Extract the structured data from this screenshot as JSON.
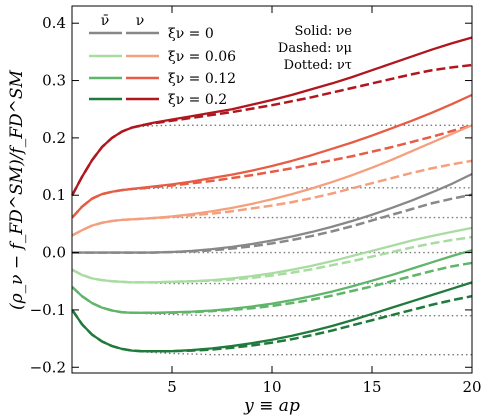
{
  "chart_data": {
    "type": "line",
    "title": "",
    "xlabel": "y ≡ ap",
    "ylabel": "(ρ_ν − f_FD^SM)/f_FD^SM",
    "xlim": [
      0,
      20
    ],
    "ylim": [
      -0.21,
      0.43
    ],
    "x_ticks": [
      5,
      10,
      15,
      20
    ],
    "y_ticks": [
      -0.2,
      -0.1,
      0.0,
      0.1,
      0.2,
      0.3,
      0.4
    ],
    "x_tick_labels": [
      "5",
      "10",
      "15",
      "20"
    ],
    "y_tick_labels": [
      "−0.2",
      "−0.1",
      "0.0",
      "0.1",
      "0.2",
      "0.3",
      "0.4"
    ],
    "legend_headers": [
      "ν̄",
      "ν"
    ],
    "legend_location": "top-left",
    "legend": [
      {
        "label": "ξν = 0",
        "antinu_color": "#888888",
        "nu_color": "#888888"
      },
      {
        "label": "ξν = 0.06",
        "antinu_color": "#a8dca0",
        "nu_color": "#f4a07e"
      },
      {
        "label": "ξν = 0.12",
        "antinu_color": "#5fb56a",
        "nu_color": "#e65c44"
      },
      {
        "label": "ξν = 0.2",
        "antinu_color": "#1f7a3c",
        "nu_color": "#b0161e"
      }
    ],
    "annotation": {
      "lines": [
        "Solid: νe",
        "Dashed: νμ",
        "Dotted: ντ"
      ],
      "location": "top-center"
    },
    "x": [
      0.01,
      0.5,
      1,
      1.5,
      2,
      2.5,
      3,
      3.5,
      4,
      5,
      6,
      7,
      8,
      9,
      10,
      11,
      12,
      13,
      14,
      15,
      16,
      17,
      18,
      19,
      20
    ],
    "series": [
      {
        "family": "nu",
        "xi": 0.2,
        "flavor": "e",
        "style": "solid",
        "color": "#b0161e",
        "values": [
          0.1,
          0.132,
          0.161,
          0.184,
          0.2,
          0.211,
          0.218,
          0.222,
          0.226,
          0.232,
          0.238,
          0.244,
          0.25,
          0.258,
          0.266,
          0.275,
          0.285,
          0.295,
          0.306,
          0.318,
          0.33,
          0.342,
          0.354,
          0.365,
          0.375
        ]
      },
      {
        "family": "nu",
        "xi": 0.2,
        "flavor": "mu",
        "style": "dashed",
        "color": "#b0161e",
        "values": [
          0.1,
          0.132,
          0.161,
          0.184,
          0.2,
          0.211,
          0.218,
          0.222,
          0.225,
          0.23,
          0.235,
          0.24,
          0.245,
          0.251,
          0.257,
          0.264,
          0.271,
          0.279,
          0.287,
          0.295,
          0.303,
          0.311,
          0.318,
          0.323,
          0.327
        ]
      },
      {
        "family": "nu",
        "xi": 0.2,
        "flavor": "tau",
        "style": "dotted",
        "color": "#777777",
        "values": [
          0.1,
          0.132,
          0.161,
          0.184,
          0.2,
          0.211,
          0.217,
          0.22,
          0.221,
          0.222,
          0.222,
          0.222,
          0.222,
          0.222,
          0.222,
          0.222,
          0.222,
          0.222,
          0.222,
          0.222,
          0.222,
          0.222,
          0.222,
          0.222,
          0.222
        ]
      },
      {
        "family": "nu",
        "xi": 0.12,
        "flavor": "e",
        "style": "solid",
        "color": "#e65c44",
        "values": [
          0.061,
          0.08,
          0.094,
          0.102,
          0.106,
          0.109,
          0.111,
          0.113,
          0.115,
          0.119,
          0.124,
          0.13,
          0.136,
          0.143,
          0.151,
          0.16,
          0.17,
          0.181,
          0.192,
          0.204,
          0.217,
          0.23,
          0.244,
          0.259,
          0.275
        ]
      },
      {
        "family": "nu",
        "xi": 0.12,
        "flavor": "mu",
        "style": "dashed",
        "color": "#e65c44",
        "values": [
          0.061,
          0.08,
          0.094,
          0.102,
          0.106,
          0.109,
          0.111,
          0.112,
          0.114,
          0.117,
          0.121,
          0.125,
          0.13,
          0.135,
          0.141,
          0.147,
          0.154,
          0.161,
          0.168,
          0.176,
          0.184,
          0.193,
          0.202,
          0.212,
          0.222
        ]
      },
      {
        "family": "nu",
        "xi": 0.12,
        "flavor": "tau",
        "style": "dotted",
        "color": "#777777",
        "values": [
          0.061,
          0.08,
          0.094,
          0.102,
          0.106,
          0.108,
          0.11,
          0.111,
          0.112,
          0.113,
          0.113,
          0.113,
          0.113,
          0.113,
          0.113,
          0.113,
          0.113,
          0.113,
          0.113,
          0.113,
          0.113,
          0.113,
          0.113,
          0.113,
          0.113
        ]
      },
      {
        "family": "nu",
        "xi": 0.06,
        "flavor": "e",
        "style": "solid",
        "color": "#f4a07e",
        "values": [
          0.03,
          0.039,
          0.047,
          0.052,
          0.055,
          0.057,
          0.058,
          0.059,
          0.06,
          0.063,
          0.067,
          0.072,
          0.078,
          0.085,
          0.093,
          0.102,
          0.112,
          0.123,
          0.135,
          0.148,
          0.162,
          0.177,
          0.192,
          0.207,
          0.222
        ]
      },
      {
        "family": "nu",
        "xi": 0.06,
        "flavor": "mu",
        "style": "dashed",
        "color": "#f4a07e",
        "values": [
          0.03,
          0.039,
          0.047,
          0.052,
          0.055,
          0.057,
          0.058,
          0.059,
          0.06,
          0.062,
          0.065,
          0.068,
          0.072,
          0.077,
          0.082,
          0.088,
          0.095,
          0.103,
          0.112,
          0.121,
          0.13,
          0.139,
          0.147,
          0.154,
          0.16
        ]
      },
      {
        "family": "nu",
        "xi": 0.06,
        "flavor": "tau",
        "style": "dotted",
        "color": "#777777",
        "values": [
          0.03,
          0.039,
          0.047,
          0.052,
          0.055,
          0.057,
          0.058,
          0.059,
          0.06,
          0.061,
          0.061,
          0.061,
          0.061,
          0.061,
          0.061,
          0.061,
          0.061,
          0.061,
          0.061,
          0.061,
          0.061,
          0.061,
          0.061,
          0.061,
          0.061
        ]
      },
      {
        "family": "both",
        "xi": 0.0,
        "flavor": "e",
        "style": "solid",
        "color": "#888888",
        "values": [
          0.0,
          0.0,
          0.0,
          0.0,
          0.0,
          0.0,
          0.0,
          0.0,
          0.0,
          0.001,
          0.003,
          0.006,
          0.01,
          0.015,
          0.021,
          0.028,
          0.036,
          0.045,
          0.055,
          0.066,
          0.078,
          0.091,
          0.105,
          0.12,
          0.137
        ]
      },
      {
        "family": "both",
        "xi": 0.0,
        "flavor": "mu",
        "style": "dashed",
        "color": "#888888",
        "values": [
          0.0,
          0.0,
          0.0,
          0.0,
          0.0,
          0.0,
          0.0,
          0.0,
          0.0,
          0.001,
          0.002,
          0.004,
          0.007,
          0.011,
          0.016,
          0.022,
          0.029,
          0.037,
          0.046,
          0.056,
          0.066,
          0.076,
          0.086,
          0.094,
          0.101
        ]
      },
      {
        "family": "both",
        "xi": 0.0,
        "flavor": "tau",
        "style": "dotted",
        "color": "#777777",
        "values": [
          0.0,
          0.0,
          0.0,
          0.0,
          0.0,
          0.0,
          0.0,
          0.0,
          0.0,
          0.0,
          0.0,
          0.0,
          0.0,
          0.0,
          0.0,
          0.0,
          0.0,
          0.0,
          0.0,
          0.0,
          0.0,
          0.0,
          0.0,
          0.0,
          0.0
        ]
      },
      {
        "family": "antinu",
        "xi": 0.06,
        "flavor": "e",
        "style": "solid",
        "color": "#a8dca0",
        "values": [
          -0.03,
          -0.039,
          -0.045,
          -0.048,
          -0.05,
          -0.051,
          -0.052,
          -0.052,
          -0.052,
          -0.051,
          -0.05,
          -0.048,
          -0.045,
          -0.041,
          -0.036,
          -0.03,
          -0.023,
          -0.015,
          -0.006,
          0.003,
          0.012,
          0.021,
          0.029,
          0.036,
          0.043
        ]
      },
      {
        "family": "antinu",
        "xi": 0.06,
        "flavor": "mu",
        "style": "dashed",
        "color": "#a8dca0",
        "values": [
          -0.03,
          -0.039,
          -0.045,
          -0.048,
          -0.05,
          -0.051,
          -0.052,
          -0.052,
          -0.052,
          -0.051,
          -0.05,
          -0.049,
          -0.047,
          -0.044,
          -0.04,
          -0.035,
          -0.029,
          -0.022,
          -0.015,
          -0.007,
          0.001,
          0.009,
          0.016,
          0.022,
          0.027
        ]
      },
      {
        "family": "antinu",
        "xi": 0.06,
        "flavor": "tau",
        "style": "dotted",
        "color": "#777777",
        "values": [
          -0.03,
          -0.039,
          -0.045,
          -0.048,
          -0.05,
          -0.051,
          -0.052,
          -0.052,
          -0.053,
          -0.054,
          -0.054,
          -0.054,
          -0.054,
          -0.054,
          -0.054,
          -0.054,
          -0.054,
          -0.054,
          -0.054,
          -0.054,
          -0.054,
          -0.054,
          -0.054,
          -0.054,
          -0.054
        ]
      },
      {
        "family": "antinu",
        "xi": 0.12,
        "flavor": "e",
        "style": "solid",
        "color": "#5fb56a",
        "values": [
          -0.06,
          -0.076,
          -0.088,
          -0.096,
          -0.101,
          -0.104,
          -0.105,
          -0.105,
          -0.105,
          -0.104,
          -0.103,
          -0.101,
          -0.098,
          -0.094,
          -0.089,
          -0.083,
          -0.076,
          -0.068,
          -0.059,
          -0.049,
          -0.039,
          -0.028,
          -0.017,
          -0.006,
          0.004
        ]
      },
      {
        "family": "antinu",
        "xi": 0.12,
        "flavor": "mu",
        "style": "dashed",
        "color": "#5fb56a",
        "values": [
          -0.06,
          -0.076,
          -0.088,
          -0.096,
          -0.101,
          -0.104,
          -0.105,
          -0.105,
          -0.105,
          -0.105,
          -0.104,
          -0.102,
          -0.1,
          -0.097,
          -0.093,
          -0.088,
          -0.082,
          -0.075,
          -0.067,
          -0.059,
          -0.05,
          -0.041,
          -0.032,
          -0.024,
          -0.018
        ]
      },
      {
        "family": "antinu",
        "xi": 0.12,
        "flavor": "tau",
        "style": "dotted",
        "color": "#777777",
        "values": [
          -0.06,
          -0.076,
          -0.088,
          -0.096,
          -0.101,
          -0.104,
          -0.105,
          -0.106,
          -0.107,
          -0.108,
          -0.109,
          -0.11,
          -0.11,
          -0.11,
          -0.11,
          -0.11,
          -0.11,
          -0.11,
          -0.11,
          -0.11,
          -0.11,
          -0.11,
          -0.11,
          -0.11,
          -0.11
        ]
      },
      {
        "family": "antinu",
        "xi": 0.2,
        "flavor": "e",
        "style": "solid",
        "color": "#1f7a3c",
        "values": [
          -0.1,
          -0.125,
          -0.143,
          -0.155,
          -0.163,
          -0.168,
          -0.171,
          -0.172,
          -0.172,
          -0.172,
          -0.17,
          -0.167,
          -0.163,
          -0.158,
          -0.152,
          -0.145,
          -0.137,
          -0.128,
          -0.118,
          -0.107,
          -0.096,
          -0.085,
          -0.074,
          -0.063,
          -0.052
        ]
      },
      {
        "family": "antinu",
        "xi": 0.2,
        "flavor": "mu",
        "style": "dashed",
        "color": "#1f7a3c",
        "values": [
          -0.1,
          -0.125,
          -0.143,
          -0.155,
          -0.163,
          -0.168,
          -0.171,
          -0.172,
          -0.172,
          -0.172,
          -0.171,
          -0.169,
          -0.166,
          -0.162,
          -0.157,
          -0.151,
          -0.144,
          -0.136,
          -0.127,
          -0.118,
          -0.109,
          -0.1,
          -0.091,
          -0.083,
          -0.076
        ]
      },
      {
        "family": "antinu",
        "xi": 0.2,
        "flavor": "tau",
        "style": "dotted",
        "color": "#777777",
        "values": [
          -0.1,
          -0.125,
          -0.143,
          -0.155,
          -0.163,
          -0.168,
          -0.171,
          -0.173,
          -0.174,
          -0.176,
          -0.177,
          -0.178,
          -0.178,
          -0.178,
          -0.178,
          -0.178,
          -0.178,
          -0.178,
          -0.178,
          -0.178,
          -0.178,
          -0.178,
          -0.178,
          -0.178,
          -0.178
        ]
      }
    ]
  }
}
